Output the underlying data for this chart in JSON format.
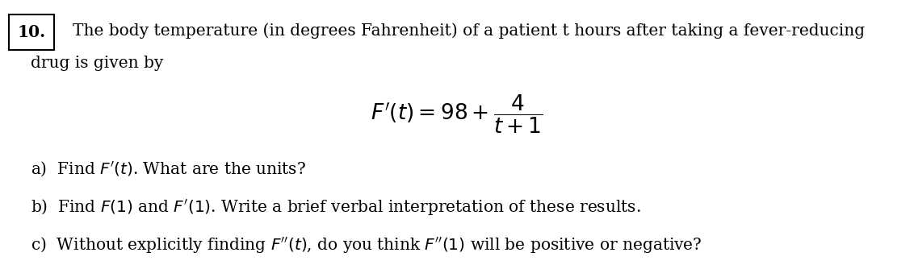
{
  "background_color": "#ffffff",
  "text_color": "#000000",
  "number_label": "10.",
  "intro_line1": "The body temperature (in degrees Fahrenheit) of a patient t hours after taking a fever-reducing",
  "intro_line2": "drug is given by",
  "formula_latex": "$F'(t) = 98 + \\dfrac{4}{t+1}$",
  "part_a": "a)  Find $F'(t)$. What are the units?",
  "part_b": "b)  Find $F(1)$ and $F'(1)$. Write a brief verbal interpretation of these results.",
  "part_c": "c)  Without explicitly finding $F''(t)$, do you think $F''(1)$ will be positive or negative?",
  "fontsize_main": 14.5,
  "fontsize_formula": 19,
  "fig_width": 11.32,
  "fig_height": 3.34,
  "dpi": 100
}
